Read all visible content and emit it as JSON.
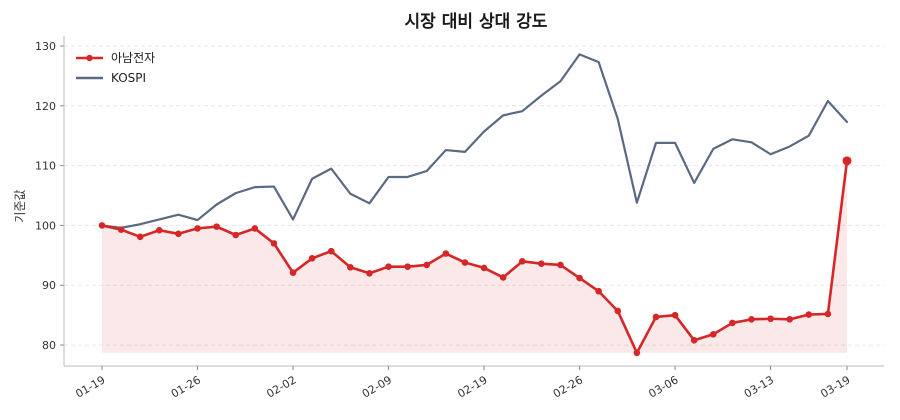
{
  "chart_data": {
    "type": "line",
    "title": "시장 대비 상대 강도",
    "xlabel": "",
    "ylabel": "기준값",
    "ylim": [
      76.5,
      131
    ],
    "y_ticks": [
      80,
      90,
      100,
      110,
      120,
      130
    ],
    "x_ticks": [
      {
        "index": 0,
        "label": "01-19"
      },
      {
        "index": 5,
        "label": "01-26"
      },
      {
        "index": 10,
        "label": "02-02"
      },
      {
        "index": 15,
        "label": "02-09"
      },
      {
        "index": 20,
        "label": "02-19"
      },
      {
        "index": 25,
        "label": "02-26"
      },
      {
        "index": 30,
        "label": "03-06"
      },
      {
        "index": 35,
        "label": "03-13"
      },
      {
        "index": 39,
        "label": "03-19"
      }
    ],
    "legend_position": "top-left",
    "grid": true,
    "fill_baseline": 78.7,
    "series": [
      {
        "name": "아남전자",
        "color": "#d62728",
        "fill": "#d62728",
        "marker": true,
        "values": [
          100.0,
          99.3,
          98.1,
          99.2,
          98.6,
          99.5,
          99.8,
          98.4,
          99.5,
          97.0,
          92.1,
          94.5,
          95.7,
          93.0,
          92.0,
          93.1,
          93.1,
          93.4,
          95.3,
          93.8,
          92.9,
          91.3,
          94.0,
          93.6,
          93.4,
          91.2,
          89.0,
          85.7,
          78.7,
          84.7,
          85.0,
          80.8,
          81.8,
          83.7,
          84.3,
          84.4,
          84.3,
          85.1,
          85.2,
          110.8
        ]
      },
      {
        "name": "KOSPI",
        "color": "#5a6a82",
        "marker": false,
        "values": [
          100.0,
          99.6,
          100.2,
          101.0,
          101.8,
          100.9,
          103.5,
          105.4,
          106.4,
          106.5,
          101.0,
          107.8,
          109.5,
          105.3,
          103.7,
          108.1,
          108.1,
          109.1,
          112.6,
          112.3,
          115.7,
          118.4,
          119.1,
          121.7,
          124.1,
          128.6,
          127.3,
          117.8,
          103.8,
          113.8,
          113.8,
          107.1,
          112.8,
          114.4,
          113.9,
          111.9,
          113.2,
          115.0,
          120.8,
          117.3
        ]
      }
    ]
  }
}
